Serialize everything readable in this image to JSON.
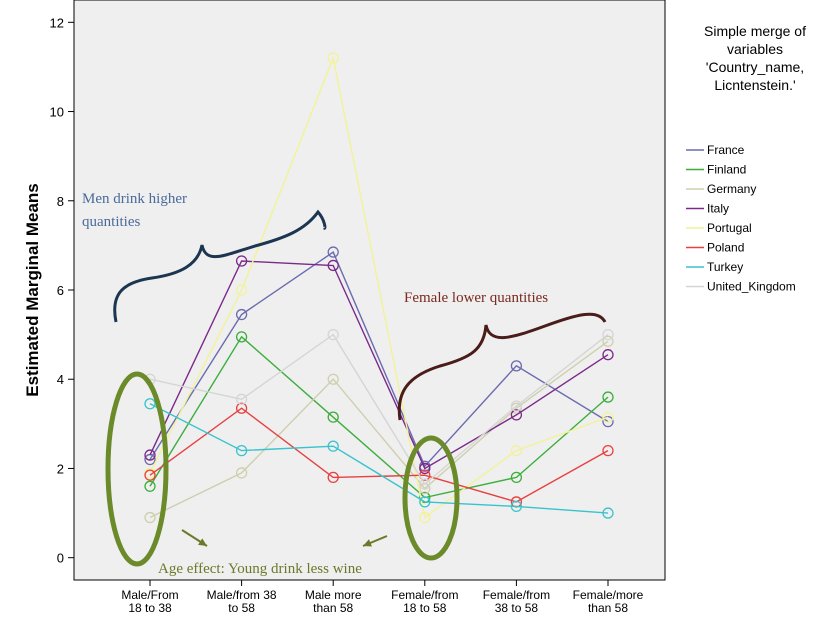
{
  "chart_data": {
    "type": "line",
    "title": "",
    "xlabel": "",
    "ylabel": "Estimated Marginal Means",
    "ylim": [
      -0.5,
      12.5
    ],
    "yticks": [
      0,
      2,
      4,
      6,
      8,
      10,
      12
    ],
    "grid": false,
    "legend_position": "right",
    "legend_title": [
      "Simple merge of",
      "variables",
      "'Country_name,",
      "Licntenstein.'"
    ],
    "categories": [
      [
        "Male/From",
        "18 to 38"
      ],
      [
        "Male/from 38",
        "to 58"
      ],
      [
        "Male more",
        "than 58"
      ],
      [
        "Female/from",
        "18 to 58"
      ],
      [
        "Female/from",
        "38 to 58"
      ],
      [
        "Female/more",
        "than 58"
      ]
    ],
    "series": [
      {
        "name": "France",
        "color": "#6b6bb0",
        "values": [
          2.2,
          5.45,
          6.85,
          2.05,
          4.3,
          3.05
        ]
      },
      {
        "name": "Finland",
        "color": "#3cae3c",
        "values": [
          1.6,
          4.95,
          3.15,
          1.35,
          1.8,
          3.6
        ]
      },
      {
        "name": "Germany",
        "color": "#cfcfae",
        "values": [
          0.9,
          1.9,
          4.0,
          1.55,
          3.35,
          4.85
        ]
      },
      {
        "name": "Italy",
        "color": "#7b2a8a",
        "values": [
          2.3,
          6.65,
          6.55,
          2.0,
          3.2,
          4.55
        ]
      },
      {
        "name": "Portugal",
        "color": "#f2f299",
        "values": [
          1.9,
          6.0,
          11.2,
          0.9,
          2.4,
          3.15
        ]
      },
      {
        "name": "Poland",
        "color": "#e84040",
        "values": [
          1.85,
          3.35,
          1.8,
          1.85,
          1.25,
          2.4
        ]
      },
      {
        "name": "Turkey",
        "color": "#39c3cc",
        "values": [
          3.45,
          2.4,
          2.5,
          1.25,
          1.15,
          1.0
        ]
      },
      {
        "name": "United_Kingdom",
        "color": "#d5d5d5",
        "values": [
          4.0,
          3.55,
          5.0,
          1.65,
          3.4,
          5.0
        ]
      }
    ],
    "annotations": [
      {
        "text_lines": [
          "Men drink higher",
          "quantities"
        ],
        "color": "#4a6a9a"
      },
      {
        "text_lines": [
          "Female lower quantities"
        ],
        "color": "#7a2a20"
      },
      {
        "text_lines": [
          "Age effect: Young drink less wine"
        ],
        "color": "#6b7a2a"
      }
    ],
    "annotation_colors": {
      "men_brace": "#1c3550",
      "female_brace": "#4a1c1a",
      "ellipse": "#6b8a2a",
      "arrow": "#6b7a2a"
    }
  }
}
